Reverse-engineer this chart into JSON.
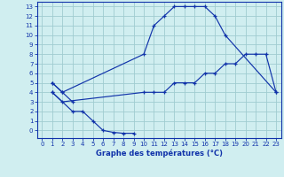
{
  "title": "Graphe des températures (°C)",
  "bg_color": "#d0eef0",
  "grid_color": "#a0ccd0",
  "line_color": "#1133aa",
  "xlim": [
    -0.5,
    23.5
  ],
  "ylim": [
    -0.8,
    13.5
  ],
  "xticks": [
    0,
    1,
    2,
    3,
    4,
    5,
    6,
    7,
    8,
    9,
    10,
    11,
    12,
    13,
    14,
    15,
    16,
    17,
    18,
    19,
    20,
    21,
    22,
    23
  ],
  "yticks": [
    0,
    1,
    2,
    3,
    4,
    5,
    6,
    7,
    8,
    9,
    10,
    11,
    12,
    13
  ],
  "series1_x": [
    1,
    2,
    10,
    11,
    12,
    13,
    14,
    15,
    16,
    17,
    18,
    23
  ],
  "series1_y": [
    5,
    4,
    8,
    11,
    12,
    13,
    13,
    13,
    13,
    12,
    10,
    4
  ],
  "series2_x": [
    1,
    2,
    10,
    11,
    12,
    13,
    14,
    15,
    16,
    17,
    18,
    19,
    20,
    21,
    22,
    23
  ],
  "series2_y": [
    4,
    3,
    4,
    4,
    4,
    5,
    5,
    5,
    6,
    6,
    7,
    7,
    8,
    8,
    8,
    4
  ],
  "series3_x": [
    1,
    3,
    4,
    5,
    6,
    7,
    8,
    9
  ],
  "series3_y": [
    4,
    2,
    2,
    1,
    0,
    -0.2,
    -0.3,
    -0.3
  ],
  "series4_x": [
    1,
    2,
    3
  ],
  "series4_y": [
    5,
    4,
    3
  ]
}
